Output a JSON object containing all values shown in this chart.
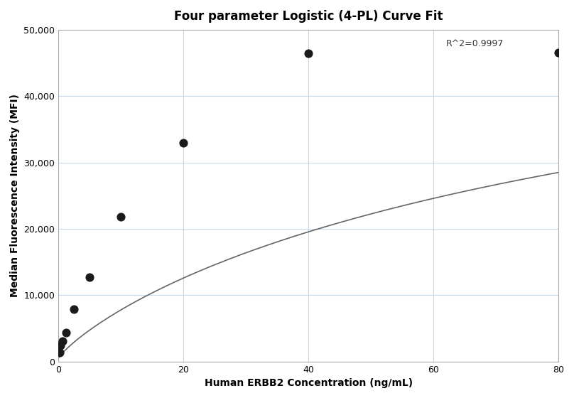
{
  "title": "Four parameter Logistic (4-PL) Curve Fit",
  "xlabel": "Human ERBB2 Concentration (ng/mL)",
  "ylabel": "Median Fluorescence Intensity (MFI)",
  "scatter_x": [
    0.156,
    0.313,
    0.625,
    1.25,
    2.5,
    5.0,
    10.0,
    20.0,
    40.0,
    80.0
  ],
  "scatter_y": [
    1400,
    2400,
    3100,
    4400,
    7900,
    12700,
    21800,
    33000,
    46400,
    46500
  ],
  "xlim": [
    0,
    80
  ],
  "ylim": [
    0,
    50000
  ],
  "xticks": [
    0,
    20,
    40,
    60,
    80
  ],
  "yticks": [
    0,
    10000,
    20000,
    30000,
    40000,
    50000
  ],
  "ytick_labels": [
    "0",
    "10,000",
    "20,000",
    "30,000",
    "40,000",
    "50,000"
  ],
  "r_squared": "R^2=0.9997",
  "r_squared_x": 62,
  "r_squared_y": 47500,
  "dot_color": "#1a1a1a",
  "dot_size": 60,
  "line_color": "#666666",
  "line_width": 1.2,
  "grid_color": "#c8d8e8",
  "grid_linewidth": 0.8,
  "background_color": "#ffffff",
  "title_fontsize": 12,
  "label_fontsize": 10,
  "tick_fontsize": 9,
  "annotation_fontsize": 9,
  "4pl_A": 500,
  "4pl_B": 0.85,
  "4pl_C": 120.0,
  "4pl_D": 68000
}
